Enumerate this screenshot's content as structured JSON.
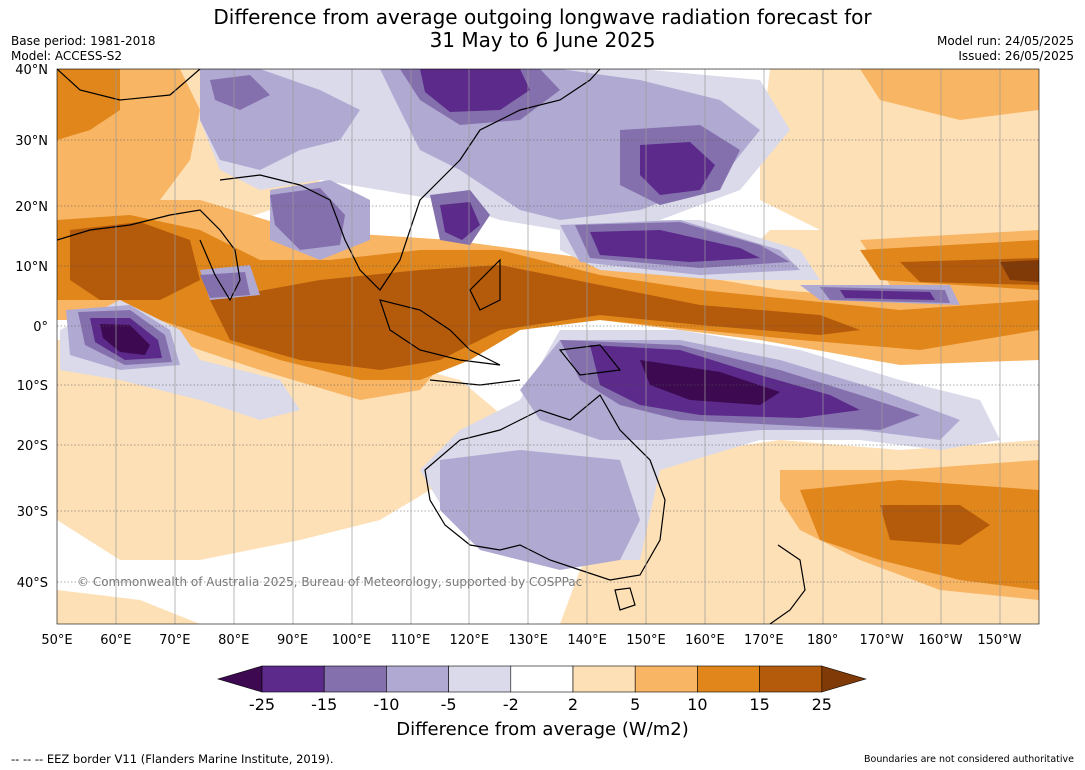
{
  "title_line1": "Difference from average outgoing longwave radiation forecast for",
  "title_line2": "31 May to 6 June 2025",
  "base_period": "Base period: 1981-2018",
  "model": "Model: ACCESS-S2",
  "model_run": "Model run: 24/05/2025",
  "issued": "Issued: 26/05/2025",
  "copyright": "© Commonwealth of Australia 2025, Bureau of Meteorology, supported by COSPPac",
  "lat_labels": [
    "40°N",
    "30°N",
    "20°N",
    "10°N",
    "0°",
    "10°S",
    "20°S",
    "30°S",
    "40°S"
  ],
  "lon_labels": [
    "50°E",
    "60°E",
    "70°E",
    "80°E",
    "90°E",
    "100°E",
    "110°E",
    "120°E",
    "130°E",
    "140°E",
    "150°E",
    "160°E",
    "170°E",
    "180°",
    "170°W",
    "160°W",
    "150°W"
  ],
  "colorbar": {
    "ticks": [
      "-25",
      "-15",
      "-10",
      "-5",
      "-2",
      "2",
      "5",
      "10",
      "15",
      "25"
    ],
    "colors": [
      "#3d0a52",
      "#5b2a8a",
      "#8470ad",
      "#b0a9d2",
      "#dadaeb",
      "#ffffff",
      "#fde0b6",
      "#f8b564",
      "#e0861a",
      "#b45a0b",
      "#7f3a08"
    ],
    "label": "Difference from average (W/m2)"
  },
  "footer_left": "--  --  -- EEZ border V11 (Flanders Marine Institute, 2019).",
  "footer_right": "Boundaries are not considered authoritative"
}
